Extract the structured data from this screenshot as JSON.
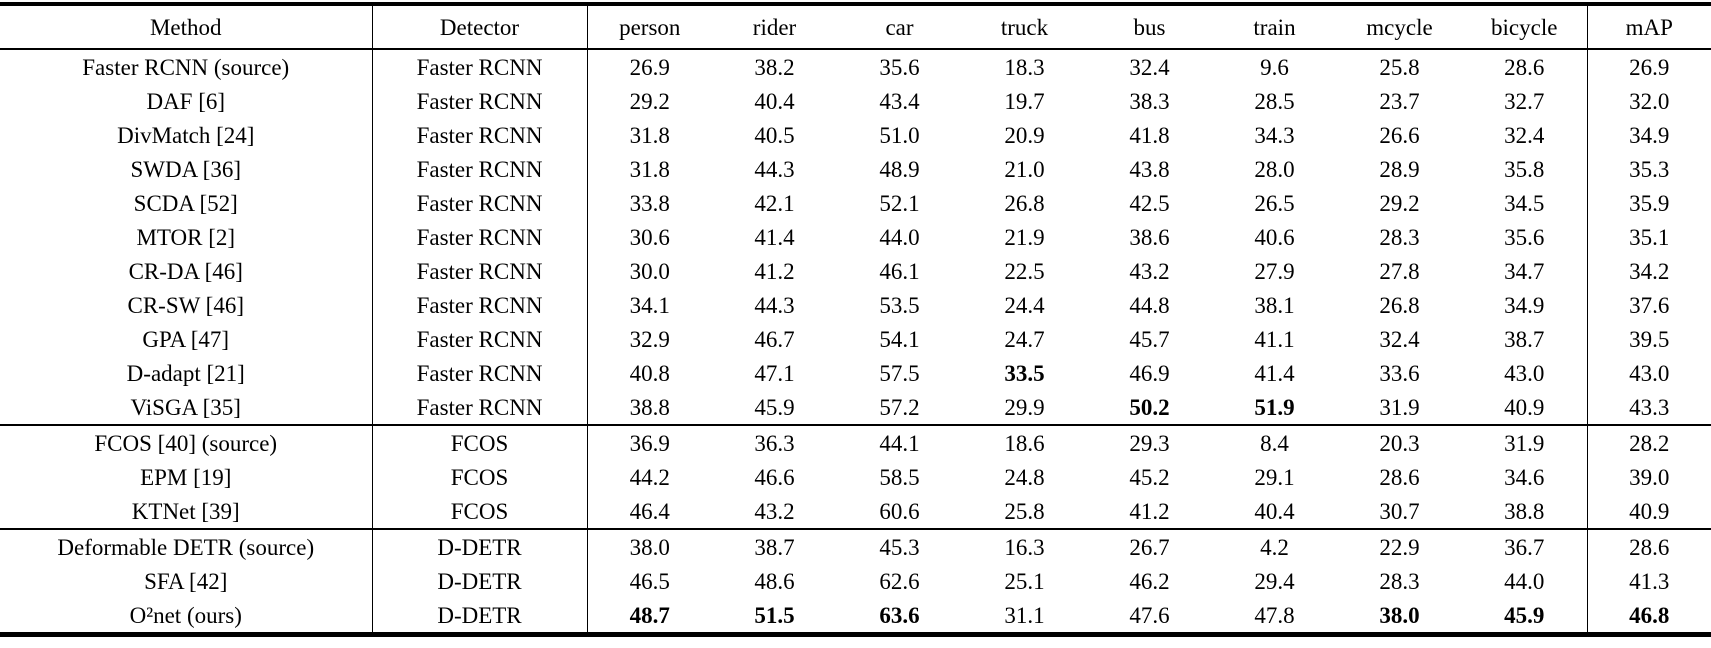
{
  "table": {
    "columns": [
      "Method",
      "Detector",
      "person",
      "rider",
      "car",
      "truck",
      "bus",
      "train",
      "mcycle",
      "bicycle",
      "mAP"
    ],
    "groups": [
      {
        "name": "faster-rcnn",
        "rows": [
          {
            "method": "Faster RCNN (source)",
            "detector": "Faster RCNN",
            "values": [
              "26.9",
              "38.2",
              "35.6",
              "18.3",
              "32.4",
              "9.6",
              "25.8",
              "28.6",
              "26.9"
            ],
            "bold": []
          },
          {
            "method": "DAF [6]",
            "detector": "Faster RCNN",
            "values": [
              "29.2",
              "40.4",
              "43.4",
              "19.7",
              "38.3",
              "28.5",
              "23.7",
              "32.7",
              "32.0"
            ],
            "bold": []
          },
          {
            "method": "DivMatch [24]",
            "detector": "Faster RCNN",
            "values": [
              "31.8",
              "40.5",
              "51.0",
              "20.9",
              "41.8",
              "34.3",
              "26.6",
              "32.4",
              "34.9"
            ],
            "bold": []
          },
          {
            "method": "SWDA [36]",
            "detector": "Faster RCNN",
            "values": [
              "31.8",
              "44.3",
              "48.9",
              "21.0",
              "43.8",
              "28.0",
              "28.9",
              "35.8",
              "35.3"
            ],
            "bold": []
          },
          {
            "method": "SCDA [52]",
            "detector": "Faster RCNN",
            "values": [
              "33.8",
              "42.1",
              "52.1",
              "26.8",
              "42.5",
              "26.5",
              "29.2",
              "34.5",
              "35.9"
            ],
            "bold": []
          },
          {
            "method": "MTOR [2]",
            "detector": "Faster RCNN",
            "values": [
              "30.6",
              "41.4",
              "44.0",
              "21.9",
              "38.6",
              "40.6",
              "28.3",
              "35.6",
              "35.1"
            ],
            "bold": []
          },
          {
            "method": "CR-DA [46]",
            "detector": "Faster RCNN",
            "values": [
              "30.0",
              "41.2",
              "46.1",
              "22.5",
              "43.2",
              "27.9",
              "27.8",
              "34.7",
              "34.2"
            ],
            "bold": []
          },
          {
            "method": "CR-SW [46]",
            "detector": "Faster RCNN",
            "values": [
              "34.1",
              "44.3",
              "53.5",
              "24.4",
              "44.8",
              "38.1",
              "26.8",
              "34.9",
              "37.6"
            ],
            "bold": []
          },
          {
            "method": "GPA [47]",
            "detector": "Faster RCNN",
            "values": [
              "32.9",
              "46.7",
              "54.1",
              "24.7",
              "45.7",
              "41.1",
              "32.4",
              "38.7",
              "39.5"
            ],
            "bold": []
          },
          {
            "method": "D-adapt [21]",
            "detector": "Faster RCNN",
            "values": [
              "40.8",
              "47.1",
              "57.5",
              "33.5",
              "46.9",
              "41.4",
              "33.6",
              "43.0",
              "43.0"
            ],
            "bold": [
              3
            ]
          },
          {
            "method": "ViSGA [35]",
            "detector": "Faster RCNN",
            "values": [
              "38.8",
              "45.9",
              "57.2",
              "29.9",
              "50.2",
              "51.9",
              "31.9",
              "40.9",
              "43.3"
            ],
            "bold": [
              4,
              5
            ]
          }
        ]
      },
      {
        "name": "fcos",
        "rows": [
          {
            "method": "FCOS [40] (source)",
            "detector": "FCOS",
            "values": [
              "36.9",
              "36.3",
              "44.1",
              "18.6",
              "29.3",
              "8.4",
              "20.3",
              "31.9",
              "28.2"
            ],
            "bold": []
          },
          {
            "method": "EPM [19]",
            "detector": "FCOS",
            "values": [
              "44.2",
              "46.6",
              "58.5",
              "24.8",
              "45.2",
              "29.1",
              "28.6",
              "34.6",
              "39.0"
            ],
            "bold": []
          },
          {
            "method": "KTNet [39]",
            "detector": "FCOS",
            "values": [
              "46.4",
              "43.2",
              "60.6",
              "25.8",
              "41.2",
              "40.4",
              "30.7",
              "38.8",
              "40.9"
            ],
            "bold": []
          }
        ]
      },
      {
        "name": "d-detr",
        "rows": [
          {
            "method": "Deformable DETR (source)",
            "detector": "D-DETR",
            "values": [
              "38.0",
              "38.7",
              "45.3",
              "16.3",
              "26.7",
              "4.2",
              "22.9",
              "36.7",
              "28.6"
            ],
            "bold": []
          },
          {
            "method": "SFA [42]",
            "detector": "D-DETR",
            "values": [
              "46.5",
              "48.6",
              "62.6",
              "25.1",
              "46.2",
              "29.4",
              "28.3",
              "44.0",
              "41.3"
            ],
            "bold": []
          },
          {
            "method": "O²net (ours)",
            "detector": "D-DETR",
            "values": [
              "48.7",
              "51.5",
              "63.6",
              "31.1",
              "47.6",
              "47.8",
              "38.0",
              "45.9",
              "46.8"
            ],
            "bold": [
              0,
              1,
              2,
              6,
              7,
              8
            ]
          }
        ]
      }
    ]
  }
}
